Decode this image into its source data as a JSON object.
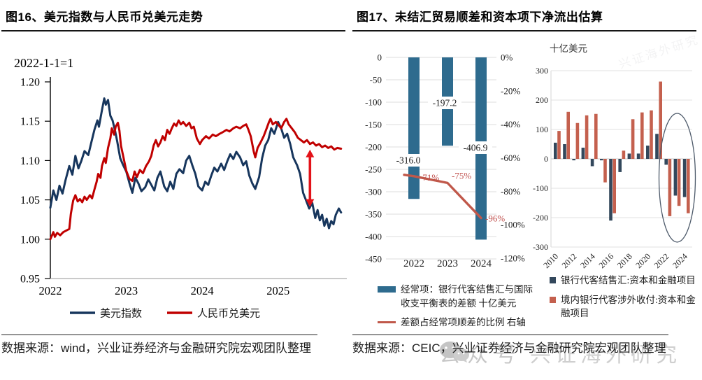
{
  "figure16": {
    "title": "图16、美元指数与人民币兑美元走势",
    "subtitle": "2022-1-1=1",
    "source": "数据来源：wind，兴业证券经济与金融研究院宏观团队整理"
  },
  "figure17": {
    "title": "图17、未结汇贸易顺差和资本项下净流出估算",
    "source": "数据来源：CEIC，兴业证券经济与金融研究院宏观团队整理"
  },
  "watermark": {
    "label": "公众号",
    "brand": "兴证海外研究"
  },
  "chart_data": [
    {
      "id": "fig16",
      "type": "line",
      "title": "美元指数与人民币兑美元走势",
      "note": "2022-1-1=1",
      "x_range": [
        2022,
        2025.85
      ],
      "ylim": [
        0.95,
        1.2
      ],
      "y_ticks": [
        1.2,
        1.15,
        1.1,
        1.05,
        1.0,
        0.95
      ],
      "x_ticks": [
        2022,
        2023,
        2024,
        2025
      ],
      "legend_position": "bottom",
      "grid": false,
      "series": [
        {
          "name": "美元指数",
          "color": "#17365d",
          "points": [
            [
              2022.0,
              1.04
            ],
            [
              2022.04,
              1.062
            ],
            [
              2022.08,
              1.05
            ],
            [
              2022.12,
              1.068
            ],
            [
              2022.16,
              1.058
            ],
            [
              2022.2,
              1.075
            ],
            [
              2022.25,
              1.093
            ],
            [
              2022.29,
              1.082
            ],
            [
              2022.33,
              1.106
            ],
            [
              2022.37,
              1.09
            ],
            [
              2022.41,
              1.1
            ],
            [
              2022.45,
              1.112
            ],
            [
              2022.5,
              1.107
            ],
            [
              2022.54,
              1.123
            ],
            [
              2022.58,
              1.139
            ],
            [
              2022.62,
              1.151
            ],
            [
              2022.64,
              1.143
            ],
            [
              2022.68,
              1.164
            ],
            [
              2022.71,
              1.179
            ],
            [
              2022.73,
              1.171
            ],
            [
              2022.76,
              1.177
            ],
            [
              2022.79,
              1.157
            ],
            [
              2022.82,
              1.151
            ],
            [
              2022.85,
              1.139
            ],
            [
              2022.88,
              1.125
            ],
            [
              2022.92,
              1.103
            ],
            [
              2022.96,
              1.094
            ],
            [
              2023.0,
              1.086
            ],
            [
              2023.04,
              1.072
            ],
            [
              2023.08,
              1.059
            ],
            [
              2023.12,
              1.078
            ],
            [
              2023.16,
              1.071
            ],
            [
              2023.2,
              1.061
            ],
            [
              2023.25,
              1.066
            ],
            [
              2023.29,
              1.076
            ],
            [
              2023.33,
              1.069
            ],
            [
              2023.37,
              1.062
            ],
            [
              2023.41,
              1.078
            ],
            [
              2023.45,
              1.086
            ],
            [
              2023.5,
              1.067
            ],
            [
              2023.54,
              1.061
            ],
            [
              2023.58,
              1.073
            ],
            [
              2023.62,
              1.064
            ],
            [
              2023.66,
              1.083
            ],
            [
              2023.7,
              1.089
            ],
            [
              2023.75,
              1.084
            ],
            [
              2023.79,
              1.1
            ],
            [
              2023.83,
              1.106
            ],
            [
              2023.87,
              1.094
            ],
            [
              2023.91,
              1.083
            ],
            [
              2023.95,
              1.067
            ],
            [
              2024.0,
              1.062
            ],
            [
              2024.04,
              1.073
            ],
            [
              2024.08,
              1.069
            ],
            [
              2024.12,
              1.081
            ],
            [
              2024.16,
              1.091
            ],
            [
              2024.2,
              1.086
            ],
            [
              2024.25,
              1.096
            ],
            [
              2024.29,
              1.088
            ],
            [
              2024.33,
              1.099
            ],
            [
              2024.37,
              1.108
            ],
            [
              2024.41,
              1.102
            ],
            [
              2024.45,
              1.111
            ],
            [
              2024.5,
              1.104
            ],
            [
              2024.54,
              1.094
            ],
            [
              2024.58,
              1.099
            ],
            [
              2024.62,
              1.081
            ],
            [
              2024.66,
              1.071
            ],
            [
              2024.7,
              1.064
            ],
            [
              2024.75,
              1.079
            ],
            [
              2024.79,
              1.103
            ],
            [
              2024.83,
              1.119
            ],
            [
              2024.87,
              1.126
            ],
            [
              2024.91,
              1.141
            ],
            [
              2024.95,
              1.134
            ],
            [
              2025.0,
              1.149
            ],
            [
              2025.04,
              1.141
            ],
            [
              2025.08,
              1.129
            ],
            [
              2025.12,
              1.134
            ],
            [
              2025.16,
              1.121
            ],
            [
              2025.2,
              1.104
            ],
            [
              2025.25,
              1.094
            ],
            [
              2025.29,
              1.083
            ],
            [
              2025.33,
              1.059
            ],
            [
              2025.37,
              1.049
            ],
            [
              2025.41,
              1.039
            ],
            [
              2025.45,
              1.046
            ],
            [
              2025.49,
              1.027
            ],
            [
              2025.52,
              1.037
            ],
            [
              2025.55,
              1.024
            ],
            [
              2025.58,
              1.031
            ],
            [
              2025.61,
              1.017
            ],
            [
              2025.64,
              1.026
            ],
            [
              2025.67,
              1.014
            ],
            [
              2025.7,
              1.023
            ],
            [
              2025.73,
              1.019
            ],
            [
              2025.76,
              1.031
            ],
            [
              2025.8,
              1.039
            ],
            [
              2025.83,
              1.034
            ]
          ]
        },
        {
          "name": "人民币兑美元",
          "color": "#c00000",
          "points": [
            [
              2022.0,
              1.0
            ],
            [
              2022.04,
              1.009
            ],
            [
              2022.06,
              1.003
            ],
            [
              2022.09,
              1.008
            ],
            [
              2022.13,
              1.005
            ],
            [
              2022.17,
              1.009
            ],
            [
              2022.21,
              1.011
            ],
            [
              2022.25,
              1.013
            ],
            [
              2022.27,
              1.032
            ],
            [
              2022.3,
              1.049
            ],
            [
              2022.33,
              1.056
            ],
            [
              2022.36,
              1.048
            ],
            [
              2022.39,
              1.051
            ],
            [
              2022.42,
              1.047
            ],
            [
              2022.45,
              1.054
            ],
            [
              2022.48,
              1.05
            ],
            [
              2022.52,
              1.056
            ],
            [
              2022.55,
              1.052
            ],
            [
              2022.58,
              1.063
            ],
            [
              2022.61,
              1.073
            ],
            [
              2022.63,
              1.083
            ],
            [
              2022.66,
              1.078
            ],
            [
              2022.68,
              1.093
            ],
            [
              2022.71,
              1.103
            ],
            [
              2022.73,
              1.097
            ],
            [
              2022.76,
              1.116
            ],
            [
              2022.79,
              1.128
            ],
            [
              2022.81,
              1.141
            ],
            [
              2022.84,
              1.133
            ],
            [
              2022.86,
              1.143
            ],
            [
              2022.89,
              1.148
            ],
            [
              2022.91,
              1.138
            ],
            [
              2022.93,
              1.119
            ],
            [
              2022.97,
              1.101
            ],
            [
              2023.0,
              1.087
            ],
            [
              2023.04,
              1.077
            ],
            [
              2023.08,
              1.074
            ],
            [
              2023.11,
              1.086
            ],
            [
              2023.14,
              1.079
            ],
            [
              2023.18,
              1.088
            ],
            [
              2023.22,
              1.084
            ],
            [
              2023.26,
              1.093
            ],
            [
              2023.3,
              1.099
            ],
            [
              2023.33,
              1.106
            ],
            [
              2023.36,
              1.119
            ],
            [
              2023.39,
              1.126
            ],
            [
              2023.42,
              1.118
            ],
            [
              2023.45,
              1.123
            ],
            [
              2023.48,
              1.131
            ],
            [
              2023.51,
              1.126
            ],
            [
              2023.54,
              1.139
            ],
            [
              2023.57,
              1.134
            ],
            [
              2023.6,
              1.141
            ],
            [
              2023.63,
              1.147
            ],
            [
              2023.66,
              1.144
            ],
            [
              2023.69,
              1.151
            ],
            [
              2023.72,
              1.146
            ],
            [
              2023.75,
              1.149
            ],
            [
              2023.79,
              1.144
            ],
            [
              2023.83,
              1.148
            ],
            [
              2023.86,
              1.141
            ],
            [
              2023.89,
              1.143
            ],
            [
              2023.93,
              1.128
            ],
            [
              2023.97,
              1.121
            ],
            [
              2024.0,
              1.126
            ],
            [
              2024.05,
              1.131
            ],
            [
              2024.09,
              1.128
            ],
            [
              2024.14,
              1.133
            ],
            [
              2024.18,
              1.131
            ],
            [
              2024.23,
              1.134
            ],
            [
              2024.27,
              1.136
            ],
            [
              2024.32,
              1.139
            ],
            [
              2024.36,
              1.137
            ],
            [
              2024.41,
              1.141
            ],
            [
              2024.45,
              1.143
            ],
            [
              2024.5,
              1.141
            ],
            [
              2024.54,
              1.144
            ],
            [
              2024.58,
              1.146
            ],
            [
              2024.61,
              1.139
            ],
            [
              2024.64,
              1.131
            ],
            [
              2024.66,
              1.121
            ],
            [
              2024.68,
              1.111
            ],
            [
              2024.7,
              1.104
            ],
            [
              2024.73,
              1.116
            ],
            [
              2024.77,
              1.123
            ],
            [
              2024.81,
              1.131
            ],
            [
              2024.85,
              1.141
            ],
            [
              2024.88,
              1.149
            ],
            [
              2024.9,
              1.153
            ],
            [
              2024.93,
              1.146
            ],
            [
              2024.97,
              1.149
            ],
            [
              2025.0,
              1.146
            ],
            [
              2025.04,
              1.141
            ],
            [
              2025.08,
              1.149
            ],
            [
              2025.11,
              1.153
            ],
            [
              2025.14,
              1.146
            ],
            [
              2025.18,
              1.141
            ],
            [
              2025.22,
              1.136
            ],
            [
              2025.26,
              1.129
            ],
            [
              2025.3,
              1.126
            ],
            [
              2025.34,
              1.123
            ],
            [
              2025.38,
              1.126
            ],
            [
              2025.42,
              1.121
            ],
            [
              2025.46,
              1.123
            ],
            [
              2025.5,
              1.119
            ],
            [
              2025.54,
              1.121
            ],
            [
              2025.58,
              1.117
            ],
            [
              2025.62,
              1.119
            ],
            [
              2025.66,
              1.116
            ],
            [
              2025.7,
              1.118
            ],
            [
              2025.74,
              1.114
            ],
            [
              2025.78,
              1.116
            ],
            [
              2025.83,
              1.115
            ]
          ]
        }
      ],
      "annotation_arrow": {
        "x": 2025.42,
        "y_from": 1.113,
        "y_to": 1.042,
        "color": "#e31219"
      }
    },
    {
      "id": "fig17_left",
      "type": "bar+line",
      "categories": [
        "2022",
        "2023",
        "2024"
      ],
      "bar_series": {
        "name": "经常项：银行代客结售汇与国际收支平衡表的差额 十亿美元",
        "color": "#2e6b8e",
        "values": [
          -316.0,
          -197.2,
          -406.9
        ],
        "data_labels": [
          "-316.0",
          "-197.2",
          "-406.9"
        ]
      },
      "line_series": {
        "name": "差额占经常项顺差的比例 右轴",
        "color": "#c0584a",
        "values_pct": [
          -71,
          -75,
          -96
        ],
        "data_labels": [
          "-71%",
          "-75%",
          "-96%"
        ]
      },
      "ylim_left": [
        -450,
        0
      ],
      "left_ticks": [
        0,
        -50,
        -100,
        -150,
        -200,
        -250,
        -300,
        -350,
        -400,
        -450
      ],
      "ylim_right_pct": [
        -120,
        0
      ],
      "right_ticks": [
        "0%",
        "-20%",
        "-40%",
        "-60%",
        "-80%",
        "-100%",
        "-120%"
      ],
      "grid": true
    },
    {
      "id": "fig17_right",
      "type": "grouped_bar",
      "unit": "十亿美元",
      "years": [
        2010,
        2011,
        2012,
        2013,
        2014,
        2015,
        2016,
        2017,
        2018,
        2019,
        2020,
        2021,
        2022,
        2023,
        2024
      ],
      "series": [
        {
          "name": "银行代客结售汇:资本和金融项目",
          "color": "#33485c",
          "values": [
            55,
            50,
            -5,
            38,
            -25,
            -5,
            -210,
            -45,
            18,
            18,
            45,
            85,
            -20,
            -125,
            -130
          ]
        },
        {
          "name": "境内银行代客涉外收付:资本和金融项目",
          "color": "#c4604e",
          "values": [
            95,
            160,
            122,
            148,
            153,
            -80,
            -185,
            28,
            135,
            158,
            165,
            263,
            -195,
            -160,
            -185
          ]
        }
      ],
      "ylim": [
        -300,
        300
      ],
      "y_ticks": [
        300,
        200,
        100,
        0,
        -100,
        -200,
        -300
      ],
      "x_tick_labels": [
        "2010",
        "2012",
        "2014",
        "2016",
        "2018",
        "2020",
        "2022",
        "2024"
      ],
      "highlight_ellipse_years": [
        2022,
        2024
      ],
      "grid": true
    }
  ]
}
